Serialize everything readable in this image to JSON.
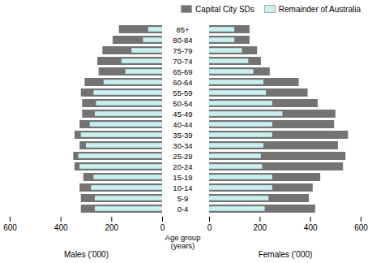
{
  "chart_data": [
    {
      "type": "bar",
      "orientation": "horizontal",
      "xlabel": "Males (’000)",
      "ylabel": "Age group\n(years)",
      "categories": [
        "85+",
        "80-84",
        "75-79",
        "70-74",
        "65-69",
        "60-64",
        "55-59",
        "50-54",
        "45-49",
        "40-44",
        "35-39",
        "30-34",
        "25-29",
        "20-24",
        "15-19",
        "10-14",
        "5-9",
        "0-4"
      ],
      "series": [
        {
          "name": "Capital City SDs",
          "color": "#737373",
          "values": [
            170,
            195,
            235,
            255,
            250,
            305,
            320,
            315,
            315,
            325,
            345,
            325,
            350,
            345,
            310,
            325,
            320,
            320
          ]
        },
        {
          "name": "Remainder of Australia",
          "color": "#c8f0f0",
          "values": [
            55,
            75,
            120,
            160,
            145,
            230,
            270,
            260,
            265,
            285,
            320,
            300,
            330,
            325,
            270,
            280,
            265,
            265
          ]
        }
      ],
      "xlim": [
        600,
        0
      ],
      "xticks": [
        600,
        400,
        200,
        0
      ],
      "grid": false
    },
    {
      "type": "bar",
      "orientation": "horizontal",
      "xlabel": "Females (’000)",
      "categories": [
        "85+",
        "80-84",
        "75-79",
        "70-74",
        "65-69",
        "60-64",
        "55-59",
        "50-54",
        "45-49",
        "40-44",
        "35-39",
        "30-34",
        "25-29",
        "20-24",
        "15-19",
        "10-14",
        "5-9",
        "0-4"
      ],
      "series": [
        {
          "name": "Capital City SDs",
          "color": "#737373",
          "values": [
            160,
            160,
            190,
            205,
            240,
            355,
            390,
            430,
            500,
            495,
            550,
            510,
            540,
            530,
            440,
            410,
            395,
            420
          ]
        },
        {
          "name": "Remainder of Australia",
          "color": "#c8f0f0",
          "values": [
            100,
            100,
            130,
            155,
            175,
            215,
            225,
            250,
            290,
            250,
            250,
            215,
            205,
            210,
            250,
            250,
            235,
            220
          ]
        }
      ],
      "xlim": [
        0,
        600
      ],
      "xticks": [
        0,
        200,
        400,
        600
      ],
      "grid": false,
      "tick_labels": "x",
      "legend": "upper right"
    }
  ]
}
